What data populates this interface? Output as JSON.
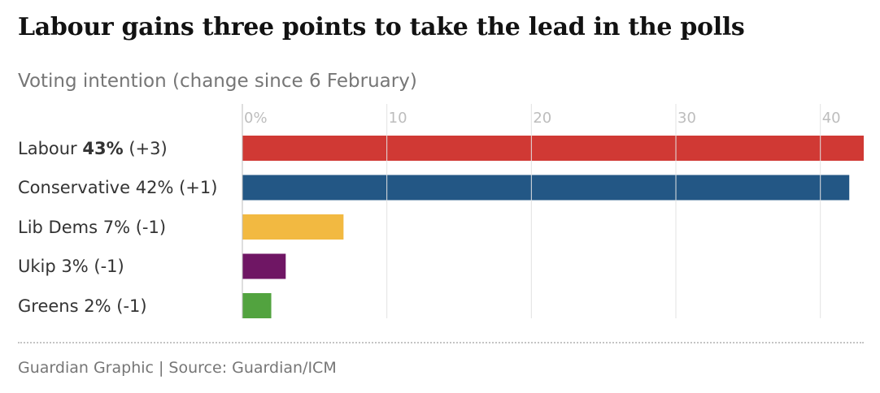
{
  "title": "Labour gains three points to take the lead in the polls",
  "subtitle": "Voting intention (change since 6 February)",
  "footer": "Guardian Graphic | Source: Guardian/ICM",
  "chart_data": {
    "type": "bar",
    "orientation": "horizontal",
    "title": "Labour gains three points to take the lead in the polls",
    "subtitle": "Voting intention (change since 6 February)",
    "categories": [
      "Labour",
      "Conservative",
      "Lib Dems",
      "Ukip",
      "Greens"
    ],
    "values": [
      43,
      42,
      7,
      3,
      2
    ],
    "changes": [
      "(+3)",
      "(+1)",
      "(-1)",
      "(-1)",
      "(-1)"
    ],
    "value_labels": [
      "43%",
      "42%",
      "7%",
      "3%",
      "2%"
    ],
    "colors": [
      "#d03934",
      "#235785",
      "#f2b941",
      "#6f1664",
      "#52a33f"
    ],
    "bold_values": [
      true,
      false,
      false,
      false,
      false
    ],
    "xlim": [
      0,
      43
    ],
    "x_ticks": [
      0,
      10,
      20,
      30,
      40
    ],
    "x_tick_labels": [
      "0%",
      "10",
      "20",
      "30",
      "40"
    ],
    "axis_position": "top",
    "grid": true
  }
}
